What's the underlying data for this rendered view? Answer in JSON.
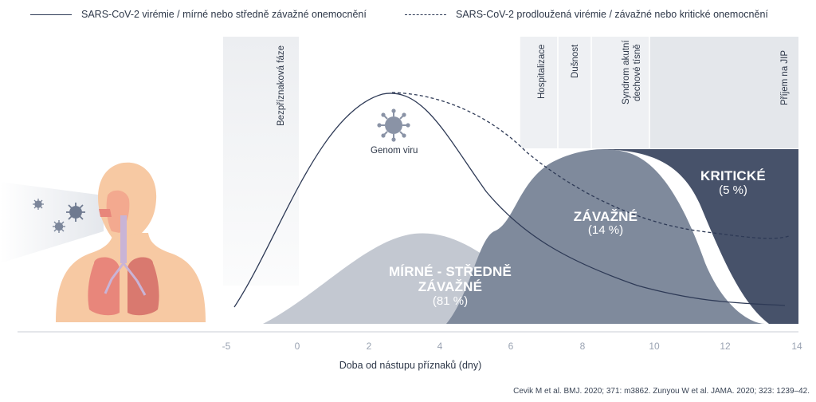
{
  "legend": {
    "solid": "SARS-CoV-2 virémie / mírné nebo středně závažné onemocnění",
    "dashed": "SARS-CoV-2 prodloužená virémie / závažné nebo kritické onemocnění"
  },
  "phases": [
    "Bezpříznaková fáze",
    "Hospitalizace",
    "Dušnost",
    "Syndrom akutní",
    "dechové tísně",
    "Příjem na JIP"
  ],
  "virus_label": "Genom viru",
  "bands": {
    "mild_title_1": "MÍRNÉ - STŘEDNĚ",
    "mild_title_2": "ZÁVAŽNÉ",
    "mild_pct": "(81 %)",
    "severe_title": "ZÁVAŽNÉ",
    "severe_pct": "(14 %)",
    "critical_title": "KRITICKÉ",
    "critical_pct": "(5 %)"
  },
  "x_ticks": [
    "-5",
    "0",
    "2",
    "4",
    "6",
    "8",
    "10",
    "12",
    "14"
  ],
  "x_axis_label": "Doba od nástupu příznaků (dny)",
  "citation": "Cevik M et al. BMJ. 2020; 371: m3862. Zunyou W et al. JAMA. 2020; 323: 1239–42.",
  "colors": {
    "mild": "#c3c8d1",
    "severe": "#7f8a9c",
    "critical": "#47526a",
    "phase_shade": "#eeeff1",
    "curve": "#2e3a56",
    "skin": "#f7c9a3",
    "lung": "#e8867b"
  }
}
